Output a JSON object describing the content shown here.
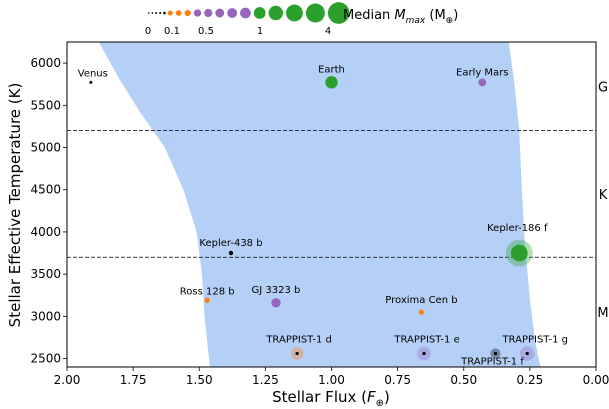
{
  "chart_data": {
    "type": "scatter",
    "xlabel": "Stellar Flux (",
    "xlabel_sym": "F",
    "xlabel_sub": "⊕",
    "xlabel_end": ")",
    "ylabel": "Stellar Effective Temperature (K)",
    "xlim": [
      2.0,
      0.0
    ],
    "ylim": [
      2400,
      6250
    ],
    "xticks": [
      "2.00",
      "1.75",
      "1.50",
      "1.25",
      "1.00",
      "0.75",
      "0.50",
      "0.25",
      "0.00"
    ],
    "xtick_values": [
      2.0,
      1.75,
      1.5,
      1.25,
      1.0,
      0.75,
      0.5,
      0.25,
      0.0
    ],
    "yticks": [
      "2500",
      "3000",
      "3500",
      "4000",
      "4500",
      "5000",
      "5500",
      "6000"
    ],
    "ytick_values": [
      2500,
      3000,
      3500,
      4000,
      4500,
      5000,
      5500,
      6000
    ],
    "spectral_class_lines": [
      5200,
      3700
    ],
    "spectral_classes": [
      {
        "label": "G",
        "temp": 5720
      },
      {
        "label": "K",
        "temp": 4450
      },
      {
        "label": "M",
        "temp": 3050
      }
    ],
    "habitable_zone": {
      "color": "#b5d0f7",
      "inner_edge": [
        [
          1.88,
          6250
        ],
        [
          1.8,
          5800
        ],
        [
          1.72,
          5400
        ],
        [
          1.63,
          5000
        ],
        [
          1.56,
          4500
        ],
        [
          1.51,
          4000
        ],
        [
          1.49,
          3500
        ],
        [
          1.48,
          3000
        ],
        [
          1.46,
          2400
        ]
      ],
      "outer_edge": [
        [
          0.33,
          6250
        ],
        [
          0.31,
          5800
        ],
        [
          0.29,
          5200
        ],
        [
          0.28,
          4500
        ],
        [
          0.27,
          3900
        ],
        [
          0.25,
          3200
        ],
        [
          0.23,
          2700
        ],
        [
          0.21,
          2400
        ]
      ]
    },
    "planets": [
      {
        "name": "Venus",
        "flux": 1.91,
        "temp": 5772,
        "mass": 0.01,
        "color": "#000000"
      },
      {
        "name": "Earth",
        "flux": 1.0,
        "temp": 5772,
        "mass": 1.0,
        "color": "#2ca02c"
      },
      {
        "name": "Early Mars",
        "flux": 0.43,
        "temp": 5772,
        "mass": 0.3,
        "color": "#9467bd"
      },
      {
        "name": "Kepler-438 b",
        "flux": 1.38,
        "temp": 3750,
        "mass": 0.05,
        "color": "#000000"
      },
      {
        "name": "Kepler-186 f",
        "flux": 0.29,
        "temp": 3750,
        "mass": 2.0,
        "color": "#2ca02c"
      },
      {
        "name": "Ross 128 b",
        "flux": 1.47,
        "temp": 3190,
        "mass": 0.1,
        "color": "#ff7f0e"
      },
      {
        "name": "GJ 3323 b",
        "flux": 1.21,
        "temp": 3160,
        "mass": 0.5,
        "color": "#9467bd"
      },
      {
        "name": "Proxima Cen b",
        "flux": 0.66,
        "temp": 3050,
        "mass": 0.1,
        "color": "#ff7f0e"
      },
      {
        "name": "TRAPPIST-1 d",
        "flux": 1.13,
        "temp": 2560,
        "mass": 0.2,
        "color": "#ff7f0e"
      },
      {
        "name": "TRAPPIST-1 e",
        "flux": 0.65,
        "temp": 2560,
        "mass": 0.3,
        "color": "#9467bd"
      },
      {
        "name": "TRAPPIST-1 f",
        "flux": 0.38,
        "temp": 2560,
        "mass": 0.05,
        "color": "#000000"
      },
      {
        "name": "TRAPPIST-1 g",
        "flux": 0.26,
        "temp": 2560,
        "mass": 0.4,
        "color": "#9467bd"
      }
    ],
    "legend": {
      "title_prefix": "Median ",
      "title_sym": "M",
      "title_sub": "max",
      "title_unit": " (M",
      "title_unit_sub": "⊕",
      "title_end": ")",
      "tick_labels": [
        "0",
        "0.1",
        "0.5",
        "1",
        "4"
      ],
      "placement": "top-center"
    }
  }
}
